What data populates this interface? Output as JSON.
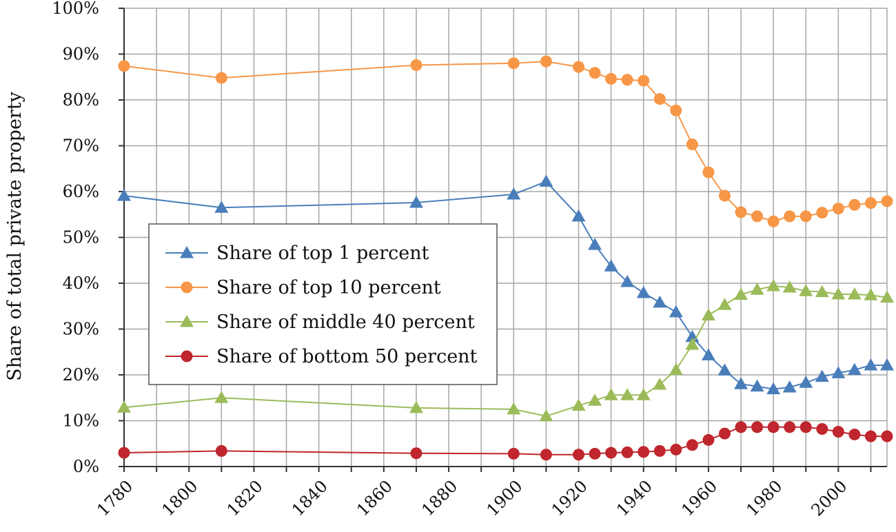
{
  "chart_data": {
    "type": "line",
    "title": "",
    "xlabel": "",
    "ylabel": "Share of total private property",
    "xlim": [
      1780,
      2015
    ],
    "ylim": [
      0,
      100
    ],
    "x_ticks": [
      "1780",
      "1800",
      "1820",
      "1840",
      "1860",
      "1880",
      "1900",
      "1920",
      "1940",
      "1960",
      "1980",
      "2000"
    ],
    "y_ticks": [
      "0%",
      "10%",
      "20%",
      "30%",
      "40%",
      "50%",
      "60%",
      "70%",
      "80%",
      "90%",
      "100%"
    ],
    "grid": true,
    "legend_position": "center-left",
    "series": [
      {
        "name": "Share of top 1 percent",
        "color": "#4a7ebb",
        "marker": "triangle",
        "points": [
          [
            1780,
            59.1
          ],
          [
            1810,
            56.5
          ],
          [
            1870,
            57.6
          ],
          [
            1900,
            59.4
          ],
          [
            1910,
            62.2
          ],
          [
            1920,
            54.6
          ],
          [
            1925,
            48.4
          ],
          [
            1930,
            43.7
          ],
          [
            1935,
            40.3
          ],
          [
            1940,
            37.9
          ],
          [
            1945,
            35.8
          ],
          [
            1950,
            33.7
          ],
          [
            1955,
            28.3
          ],
          [
            1960,
            24.3
          ],
          [
            1965,
            21.0
          ],
          [
            1970,
            18.0
          ],
          [
            1975,
            17.5
          ],
          [
            1980,
            16.9
          ],
          [
            1985,
            17.3
          ],
          [
            1990,
            18.3
          ],
          [
            1995,
            19.6
          ],
          [
            2000,
            20.4
          ],
          [
            2005,
            21.1
          ],
          [
            2010,
            22.1
          ],
          [
            2015,
            22.1
          ]
        ]
      },
      {
        "name": "Share of top 10 percent",
        "color": "#f79646",
        "marker": "circle",
        "points": [
          [
            1780,
            87.4
          ],
          [
            1810,
            84.8
          ],
          [
            1870,
            87.6
          ],
          [
            1900,
            88.0
          ],
          [
            1910,
            88.4
          ],
          [
            1920,
            87.2
          ],
          [
            1925,
            85.9
          ],
          [
            1930,
            84.6
          ],
          [
            1935,
            84.4
          ],
          [
            1940,
            84.2
          ],
          [
            1945,
            80.2
          ],
          [
            1950,
            77.7
          ],
          [
            1955,
            70.3
          ],
          [
            1960,
            64.2
          ],
          [
            1965,
            59.1
          ],
          [
            1970,
            55.5
          ],
          [
            1975,
            54.6
          ],
          [
            1980,
            53.5
          ],
          [
            1985,
            54.6
          ],
          [
            1990,
            54.6
          ],
          [
            1995,
            55.4
          ],
          [
            2000,
            56.3
          ],
          [
            2005,
            57.1
          ],
          [
            2010,
            57.5
          ],
          [
            2015,
            57.9
          ]
        ]
      },
      {
        "name": "Share of middle 40 percent",
        "color": "#9bbb59",
        "marker": "triangle",
        "points": [
          [
            1780,
            12.9
          ],
          [
            1810,
            15.0
          ],
          [
            1870,
            12.8
          ],
          [
            1900,
            12.5
          ],
          [
            1910,
            11.0
          ],
          [
            1920,
            13.3
          ],
          [
            1925,
            14.4
          ],
          [
            1930,
            15.6
          ],
          [
            1935,
            15.6
          ],
          [
            1940,
            15.6
          ],
          [
            1945,
            17.9
          ],
          [
            1950,
            21.1
          ],
          [
            1955,
            26.6
          ],
          [
            1960,
            33.0
          ],
          [
            1965,
            35.3
          ],
          [
            1970,
            37.5
          ],
          [
            1975,
            38.6
          ],
          [
            1980,
            39.4
          ],
          [
            1985,
            39.1
          ],
          [
            1990,
            38.3
          ],
          [
            1995,
            38.1
          ],
          [
            2000,
            37.6
          ],
          [
            2005,
            37.6
          ],
          [
            2010,
            37.4
          ],
          [
            2015,
            36.9
          ]
        ]
      },
      {
        "name": "Share of bottom 50 percent",
        "color": "#c0262d",
        "marker": "circle",
        "points": [
          [
            1780,
            3.0
          ],
          [
            1810,
            3.4
          ],
          [
            1870,
            2.9
          ],
          [
            1900,
            2.8
          ],
          [
            1910,
            2.6
          ],
          [
            1920,
            2.6
          ],
          [
            1925,
            2.8
          ],
          [
            1930,
            3.0
          ],
          [
            1935,
            3.1
          ],
          [
            1940,
            3.2
          ],
          [
            1945,
            3.4
          ],
          [
            1950,
            3.7
          ],
          [
            1955,
            4.7
          ],
          [
            1960,
            5.8
          ],
          [
            1965,
            7.2
          ],
          [
            1970,
            8.6
          ],
          [
            1975,
            8.6
          ],
          [
            1980,
            8.6
          ],
          [
            1985,
            8.6
          ],
          [
            1990,
            8.6
          ],
          [
            1995,
            8.2
          ],
          [
            2000,
            7.6
          ],
          [
            2005,
            7.0
          ],
          [
            2010,
            6.6
          ],
          [
            2015,
            6.6
          ]
        ]
      }
    ],
    "legend_labels": [
      "Share of top 1 percent",
      "Share of top 10 percent",
      "Share of middle 40 percent",
      "Share of bottom 50 percent"
    ]
  }
}
